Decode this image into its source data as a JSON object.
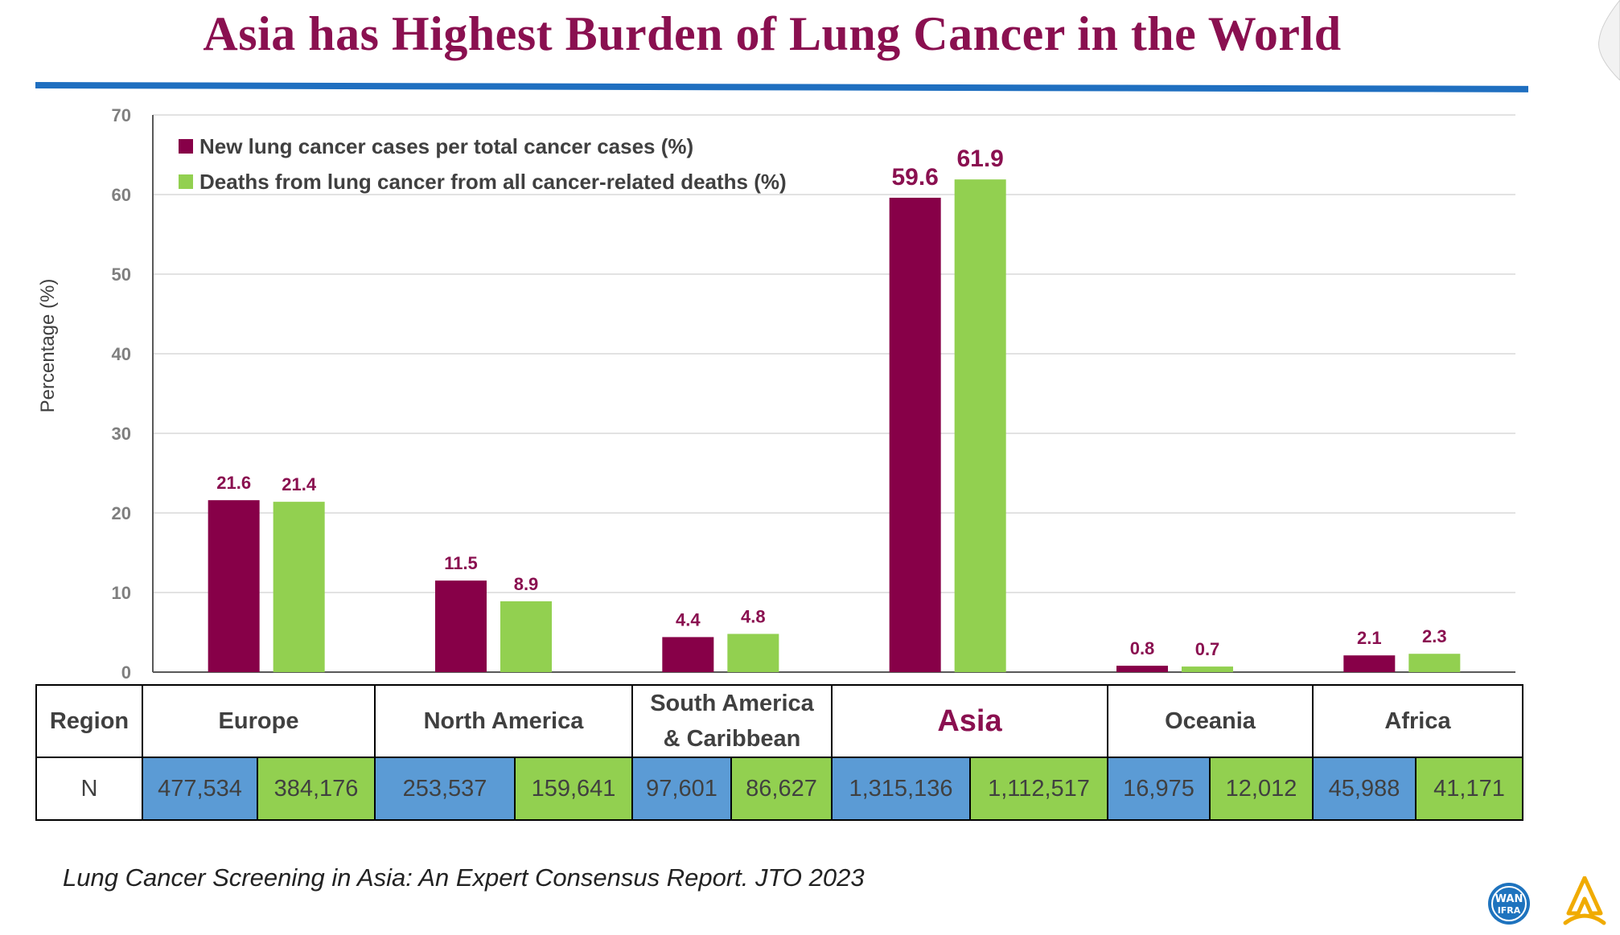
{
  "title": "Asia has Highest Burden of Lung Cancer in the World",
  "colors": {
    "title": "#8a1050",
    "series_new": "#870048",
    "series_deaths": "#92d050",
    "table_new": "#5b9bd5",
    "table_deaths": "#92d050",
    "rule": "#1f6fc0",
    "label": "#8a1050"
  },
  "chart_data": {
    "type": "bar",
    "title": "",
    "xlabel": "",
    "ylabel": "Percentage (%)",
    "ylim": [
      0,
      70
    ],
    "yticks": [
      "0",
      "10",
      "20",
      "30",
      "40",
      "50",
      "60",
      "70"
    ],
    "grid": true,
    "legend_position": "top-left",
    "categories": [
      "Europe",
      "North America",
      "South America & Caribbean",
      "Asia",
      "Oceania",
      "Africa"
    ],
    "series": [
      {
        "name": "New lung cancer cases per total cancer cases (%)",
        "values": [
          21.6,
          11.5,
          4.4,
          59.6,
          0.8,
          2.1
        ],
        "labels": [
          "21.6",
          "11.5",
          "4.4",
          "59.6",
          "0.8",
          "2.1"
        ]
      },
      {
        "name": "Deaths from lung cancer from all cancer-related deaths (%)",
        "values": [
          21.4,
          8.9,
          4.8,
          61.9,
          0.7,
          2.3
        ],
        "labels": [
          "21.4",
          "8.9",
          "4.8",
          "61.9",
          "0.7",
          "2.3"
        ]
      }
    ]
  },
  "table": {
    "region_header": "Region",
    "n_header": "N",
    "regions": [
      {
        "name": "Europe",
        "n_new": "477,534",
        "n_deaths": "384,176"
      },
      {
        "name": "North America",
        "n_new": "253,537",
        "n_deaths": "159,641"
      },
      {
        "name_line1": "South America",
        "name_line2": "& Caribbean",
        "n_new": "97,601",
        "n_deaths": "86,627"
      },
      {
        "name": "Asia",
        "n_new": "1,315,136",
        "n_deaths": "1,112,517"
      },
      {
        "name": "Oceania",
        "n_new": "16,975",
        "n_deaths": "12,012"
      },
      {
        "name": "Africa",
        "n_new": "45,988",
        "n_deaths": "41,171"
      }
    ]
  },
  "citation": "Lung Cancer Screening in Asia: An Expert Consensus Report.  JTO 2023",
  "logos": {
    "wan": "WAN",
    "ifra": "IFRA",
    "brand": "astrazeneca-logo"
  }
}
